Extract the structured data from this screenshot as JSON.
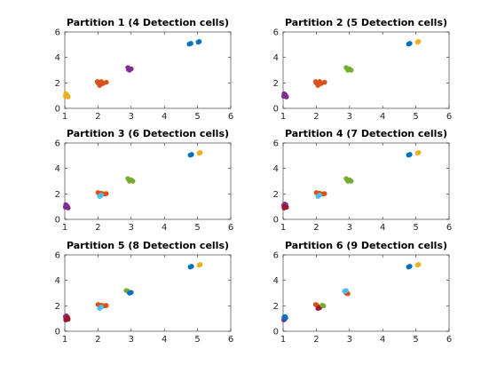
{
  "chart_data": [
    {
      "type": "scatter",
      "title": "Partition 1 (4 Detection cells)",
      "xlim": [
        1,
        6
      ],
      "ylim": [
        0,
        6
      ],
      "xticks": [
        1,
        2,
        3,
        4,
        5,
        6
      ],
      "yticks": [
        0,
        2,
        4,
        6
      ],
      "grid": false,
      "series": [
        {
          "color": "#EDB120",
          "points": [
            [
              1.02,
              0.95
            ],
            [
              1.05,
              1.1
            ],
            [
              1.08,
              1.0
            ],
            [
              1.03,
              1.15
            ],
            [
              1.1,
              0.9
            ],
            [
              1.06,
              1.05
            ]
          ]
        },
        {
          "color": "#D95319",
          "points": [
            [
              2.0,
              2.0
            ],
            [
              2.05,
              1.8
            ],
            [
              2.1,
              2.1
            ],
            [
              2.15,
              1.95
            ],
            [
              2.25,
              2.05
            ],
            [
              1.98,
              2.1
            ],
            [
              2.08,
              2.0
            ]
          ]
        },
        {
          "color": "#7E2F8E",
          "points": [
            [
              2.9,
              3.2
            ],
            [
              2.95,
              3.0
            ],
            [
              3.0,
              3.1
            ],
            [
              2.92,
              3.05
            ]
          ]
        },
        {
          "color": "#0072BD",
          "points": [
            [
              4.75,
              5.05
            ],
            [
              4.8,
              5.1
            ],
            [
              5.02,
              5.2
            ],
            [
              5.05,
              5.25
            ]
          ]
        }
      ]
    },
    {
      "type": "scatter",
      "title": "Partition 2 (5 Detection cells)",
      "xlim": [
        1,
        6
      ],
      "ylim": [
        0,
        6
      ],
      "xticks": [
        1,
        2,
        3,
        4,
        5,
        6
      ],
      "yticks": [
        0,
        2,
        4,
        6
      ],
      "grid": false,
      "series": [
        {
          "color": "#7E2F8E",
          "points": [
            [
              1.02,
              0.95
            ],
            [
              1.05,
              1.1
            ],
            [
              1.08,
              1.0
            ],
            [
              1.03,
              1.15
            ],
            [
              1.1,
              0.9
            ]
          ]
        },
        {
          "color": "#D95319",
          "points": [
            [
              2.0,
              2.0
            ],
            [
              2.05,
              1.8
            ],
            [
              2.1,
              2.1
            ],
            [
              2.15,
              1.95
            ],
            [
              2.25,
              2.05
            ],
            [
              1.98,
              2.1
            ]
          ]
        },
        {
          "color": "#77AC30",
          "points": [
            [
              2.9,
              3.2
            ],
            [
              2.95,
              3.0
            ],
            [
              3.0,
              3.1
            ],
            [
              3.05,
              3.0
            ]
          ]
        },
        {
          "color": "#0072BD",
          "points": [
            [
              4.78,
              5.05
            ],
            [
              4.82,
              5.1
            ]
          ]
        },
        {
          "color": "#EDB120",
          "points": [
            [
              5.05,
              5.2
            ],
            [
              5.08,
              5.25
            ]
          ]
        }
      ]
    },
    {
      "type": "scatter",
      "title": "Partition 3 (6 Detection cells)",
      "xlim": [
        1,
        6
      ],
      "ylim": [
        0,
        6
      ],
      "xticks": [
        1,
        2,
        3,
        4,
        5,
        6
      ],
      "yticks": [
        0,
        2,
        4,
        6
      ],
      "grid": false,
      "series": [
        {
          "color": "#7E2F8E",
          "points": [
            [
              1.02,
              0.95
            ],
            [
              1.05,
              1.1
            ],
            [
              1.08,
              1.0
            ],
            [
              1.03,
              1.15
            ],
            [
              1.1,
              0.9
            ]
          ]
        },
        {
          "color": "#D95319",
          "points": [
            [
              2.0,
              2.1
            ],
            [
              2.1,
              2.05
            ],
            [
              2.2,
              2.0
            ],
            [
              2.25,
              2.02
            ]
          ]
        },
        {
          "color": "#4DBEEE",
          "points": [
            [
              2.05,
              1.8
            ],
            [
              2.1,
              1.9
            ]
          ]
        },
        {
          "color": "#77AC30",
          "points": [
            [
              2.9,
              3.2
            ],
            [
              2.95,
              3.0
            ],
            [
              3.0,
              3.1
            ],
            [
              3.05,
              3.0
            ]
          ]
        },
        {
          "color": "#0072BD",
          "points": [
            [
              4.78,
              5.05
            ],
            [
              4.82,
              5.1
            ]
          ]
        },
        {
          "color": "#EDB120",
          "points": [
            [
              5.05,
              5.2
            ],
            [
              5.08,
              5.25
            ]
          ]
        }
      ]
    },
    {
      "type": "scatter",
      "title": "Partition 4 (7 Detection cells)",
      "xlim": [
        1,
        6
      ],
      "ylim": [
        0,
        6
      ],
      "xticks": [
        1,
        2,
        3,
        4,
        5,
        6
      ],
      "yticks": [
        0,
        2,
        4,
        6
      ],
      "grid": false,
      "series": [
        {
          "color": "#7E2F8E",
          "points": [
            [
              1.02,
              1.1
            ],
            [
              1.05,
              1.2
            ],
            [
              1.08,
              1.15
            ]
          ]
        },
        {
          "color": "#A2142F",
          "points": [
            [
              1.03,
              0.9
            ],
            [
              1.06,
              1.0
            ],
            [
              1.1,
              0.95
            ]
          ]
        },
        {
          "color": "#D95319",
          "points": [
            [
              2.0,
              2.1
            ],
            [
              2.1,
              2.05
            ],
            [
              2.2,
              2.0
            ],
            [
              2.25,
              2.02
            ]
          ]
        },
        {
          "color": "#4DBEEE",
          "points": [
            [
              2.05,
              1.8
            ],
            [
              2.1,
              1.9
            ]
          ]
        },
        {
          "color": "#77AC30",
          "points": [
            [
              2.9,
              3.2
            ],
            [
              2.95,
              3.0
            ],
            [
              3.0,
              3.1
            ],
            [
              3.05,
              3.0
            ]
          ]
        },
        {
          "color": "#0072BD",
          "points": [
            [
              4.78,
              5.05
            ],
            [
              4.82,
              5.1
            ]
          ]
        },
        {
          "color": "#EDB120",
          "points": [
            [
              5.05,
              5.2
            ],
            [
              5.08,
              5.25
            ]
          ]
        }
      ]
    },
    {
      "type": "scatter",
      "title": "Partition 5 (8 Detection cells)",
      "xlim": [
        1,
        6
      ],
      "ylim": [
        0,
        6
      ],
      "xticks": [
        1,
        2,
        3,
        4,
        5,
        6
      ],
      "yticks": [
        0,
        2,
        4,
        6
      ],
      "grid": false,
      "series": [
        {
          "color": "#7E2F8E",
          "points": [
            [
              1.02,
              1.15
            ],
            [
              1.05,
              1.2
            ]
          ]
        },
        {
          "color": "#A2142F",
          "points": [
            [
              1.03,
              0.9
            ],
            [
              1.06,
              1.0
            ],
            [
              1.1,
              0.95
            ],
            [
              1.08,
              1.1
            ]
          ]
        },
        {
          "color": "#D95319",
          "points": [
            [
              2.0,
              2.1
            ],
            [
              2.1,
              2.05
            ],
            [
              2.2,
              2.0
            ],
            [
              2.25,
              2.02
            ]
          ]
        },
        {
          "color": "#4DBEEE",
          "points": [
            [
              2.05,
              1.8
            ],
            [
              2.1,
              1.9
            ]
          ]
        },
        {
          "color": "#77AC30",
          "points": [
            [
              2.85,
              3.2
            ],
            [
              2.9,
              3.15
            ]
          ]
        },
        {
          "color": "#0072BD",
          "points": [
            [
              2.95,
              3.0
            ],
            [
              3.0,
              3.05
            ],
            [
              4.78,
              5.05
            ],
            [
              4.82,
              5.1
            ]
          ]
        },
        {
          "color": "#EDB120",
          "points": [
            [
              5.05,
              5.2
            ],
            [
              5.08,
              5.25
            ]
          ]
        }
      ]
    },
    {
      "type": "scatter",
      "title": "Partition 6 (9 Detection cells)",
      "xlim": [
        1,
        6
      ],
      "ylim": [
        0,
        6
      ],
      "xticks": [
        1,
        2,
        3,
        4,
        5,
        6
      ],
      "yticks": [
        0,
        2,
        4,
        6
      ],
      "grid": false,
      "series": [
        {
          "color": "#7E2F8E",
          "points": [
            [
              1.02,
              0.9
            ],
            [
              1.05,
              0.95
            ]
          ]
        },
        {
          "color": "#0072BD",
          "points": [
            [
              1.03,
              1.1
            ],
            [
              1.06,
              1.15
            ],
            [
              1.08,
              1.05
            ],
            [
              4.78,
              5.05
            ],
            [
              4.82,
              5.1
            ]
          ]
        },
        {
          "color": "#D95319",
          "points": [
            [
              1.98,
              2.1
            ],
            [
              2.02,
              2.05
            ],
            [
              2.9,
              3.0
            ],
            [
              2.95,
              2.95
            ]
          ]
        },
        {
          "color": "#A2142F",
          "points": [
            [
              2.05,
              1.8
            ],
            [
              2.1,
              1.85
            ]
          ]
        },
        {
          "color": "#77AC30",
          "points": [
            [
              2.18,
              2.05
            ],
            [
              2.22,
              2.0
            ]
          ]
        },
        {
          "color": "#4DBEEE",
          "points": [
            [
              2.85,
              3.15
            ],
            [
              2.9,
              3.2
            ]
          ]
        },
        {
          "color": "#EDB120",
          "points": [
            [
              5.05,
              5.2
            ],
            [
              5.08,
              5.25
            ]
          ]
        }
      ]
    }
  ]
}
